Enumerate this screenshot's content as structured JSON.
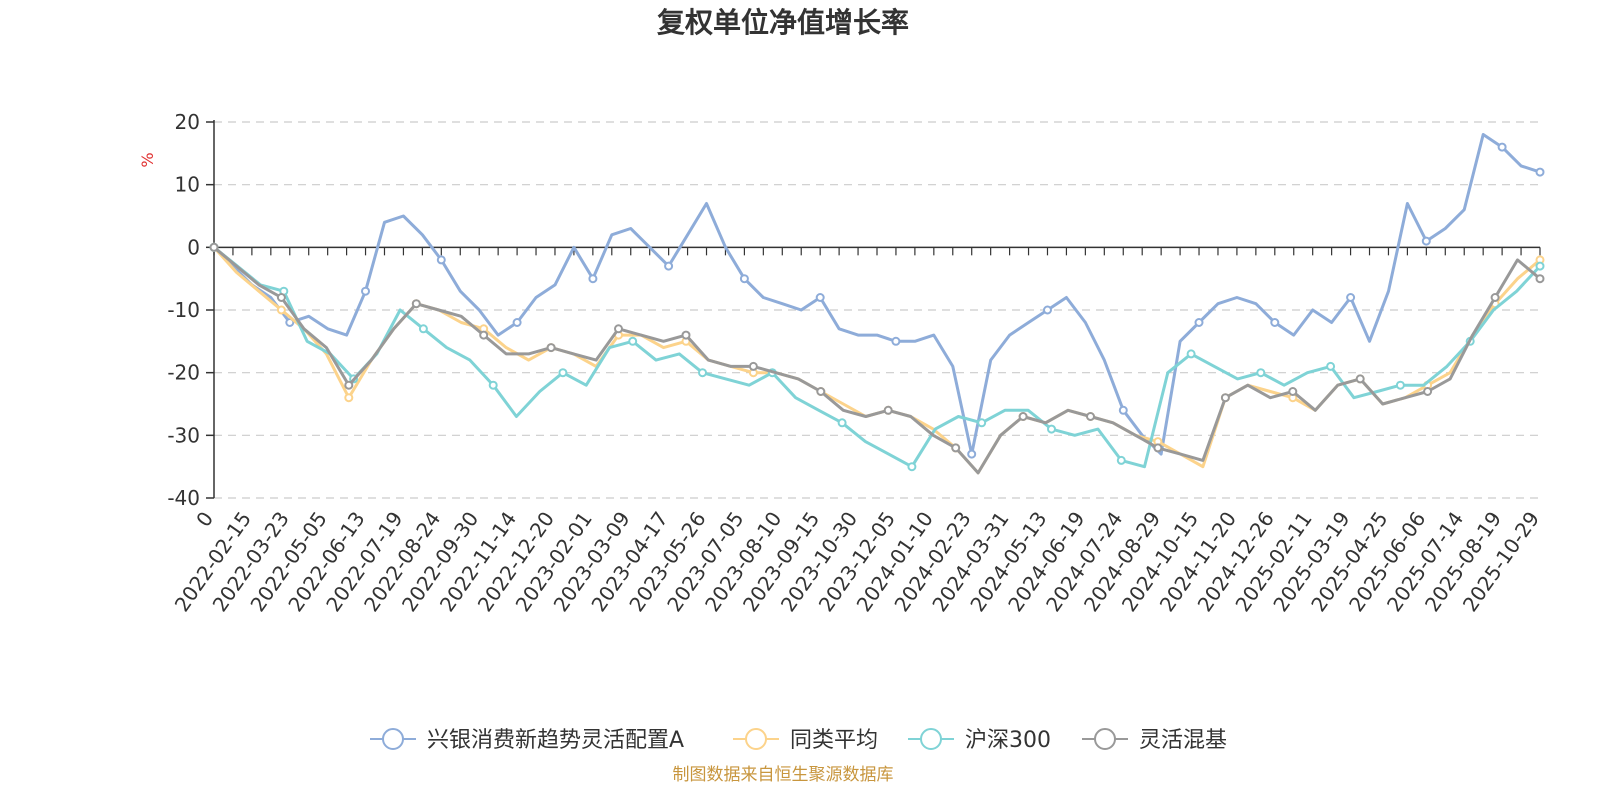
{
  "chart_data": {
    "type": "line",
    "title": "复权单位净值增长率",
    "ylabel": "%",
    "ylim": [
      -40,
      20
    ],
    "y_ticks": [
      "20",
      "10",
      "0",
      "-10",
      "-20",
      "-30",
      "-40"
    ],
    "y_tick_values": [
      20,
      10,
      0,
      -10,
      -20,
      -30,
      -40
    ],
    "x_tick_labels": [
      "0",
      "2022-02-15",
      "2022-03-23",
      "2022-05-05",
      "2022-06-13",
      "2022-07-19",
      "2022-08-24",
      "2022-09-30",
      "2022-11-14",
      "2022-12-20",
      "2023-02-01",
      "2023-03-09",
      "2023-04-17",
      "2023-05-26",
      "2023-07-05",
      "2023-08-10",
      "2023-09-15",
      "2023-10-30",
      "2023-12-05",
      "2024-01-10",
      "2024-02-23",
      "2024-03-31",
      "2024-05-13",
      "2024-06-19",
      "2024-07-24",
      "2024-08-29",
      "2024-10-15",
      "2024-11-20",
      "2024-12-26",
      "2025-02-11",
      "2025-03-19",
      "2025-04-25",
      "2025-06-06",
      "2025-07-14",
      "2025-08-19",
      "2025-10-29"
    ],
    "grid": true,
    "legend_position": "bottom",
    "source": "制图数据来自恒生聚源数据库",
    "series": [
      {
        "name": "兴银消费新趋势灵活配置A",
        "color": "#8eacd9",
        "values": [
          0,
          -3,
          -6,
          -8,
          -12,
          -11,
          -13,
          -14,
          -7,
          4,
          5,
          2,
          -2,
          -7,
          -10,
          -14,
          -12,
          -8,
          -6,
          0,
          -5,
          2,
          3,
          0,
          -3,
          2,
          7,
          0,
          -5,
          -8,
          -9,
          -10,
          -8,
          -13,
          -14,
          -14,
          -15,
          -15,
          -14,
          -19,
          -33,
          -18,
          -14,
          -12,
          -10,
          -8,
          -12,
          -18,
          -26,
          -30,
          -33,
          -15,
          -12,
          -9,
          -8,
          -9,
          -12,
          -14,
          -10,
          -12,
          -8,
          -15,
          -7,
          7,
          1,
          3,
          6,
          18,
          16,
          13,
          12
        ]
      },
      {
        "name": "同类平均",
        "color": "#fcd38b",
        "values": [
          0,
          -4,
          -7,
          -10,
          -13,
          -17,
          -24,
          -18,
          -13,
          -9,
          -10,
          -12,
          -13,
          -16,
          -18,
          -16,
          -17,
          -19,
          -14,
          -14,
          -16,
          -15,
          -18,
          -19,
          -20,
          -20,
          -21,
          -23,
          -25,
          -27,
          -26,
          -27,
          -29,
          -32,
          -36,
          -30,
          -27,
          -28,
          -26,
          -27,
          -28,
          -30,
          -31,
          -33,
          -35,
          -24,
          -22,
          -23,
          -24,
          -26,
          -22,
          -21,
          -25,
          -24,
          -22,
          -20,
          -14,
          -9,
          -5,
          -2
        ]
      },
      {
        "name": "沪深300",
        "color": "#7fd3d6",
        "values": [
          0,
          -3,
          -6,
          -7,
          -15,
          -17,
          -21,
          -17,
          -10,
          -13,
          -16,
          -18,
          -22,
          -27,
          -23,
          -20,
          -22,
          -16,
          -15,
          -18,
          -17,
          -20,
          -21,
          -22,
          -20,
          -24,
          -26,
          -28,
          -31,
          -33,
          -35,
          -29,
          -27,
          -28,
          -26,
          -26,
          -29,
          -30,
          -29,
          -34,
          -35,
          -20,
          -17,
          -19,
          -21,
          -20,
          -22,
          -20,
          -19,
          -24,
          -23,
          -22,
          -22,
          -19,
          -15,
          -10,
          -7,
          -3
        ]
      },
      {
        "name": "灵活混基",
        "color": "#999999",
        "values": [
          0,
          -3,
          -6,
          -8,
          -13,
          -16,
          -22,
          -18,
          -13,
          -9,
          -10,
          -11,
          -14,
          -17,
          -17,
          -16,
          -17,
          -18,
          -13,
          -14,
          -15,
          -14,
          -18,
          -19,
          -19,
          -20,
          -21,
          -23,
          -26,
          -27,
          -26,
          -27,
          -30,
          -32,
          -36,
          -30,
          -27,
          -28,
          -26,
          -27,
          -28,
          -30,
          -32,
          -33,
          -34,
          -24,
          -22,
          -24,
          -23,
          -26,
          -22,
          -21,
          -25,
          -24,
          -23,
          -21,
          -14,
          -8,
          -2,
          -5
        ]
      }
    ]
  }
}
